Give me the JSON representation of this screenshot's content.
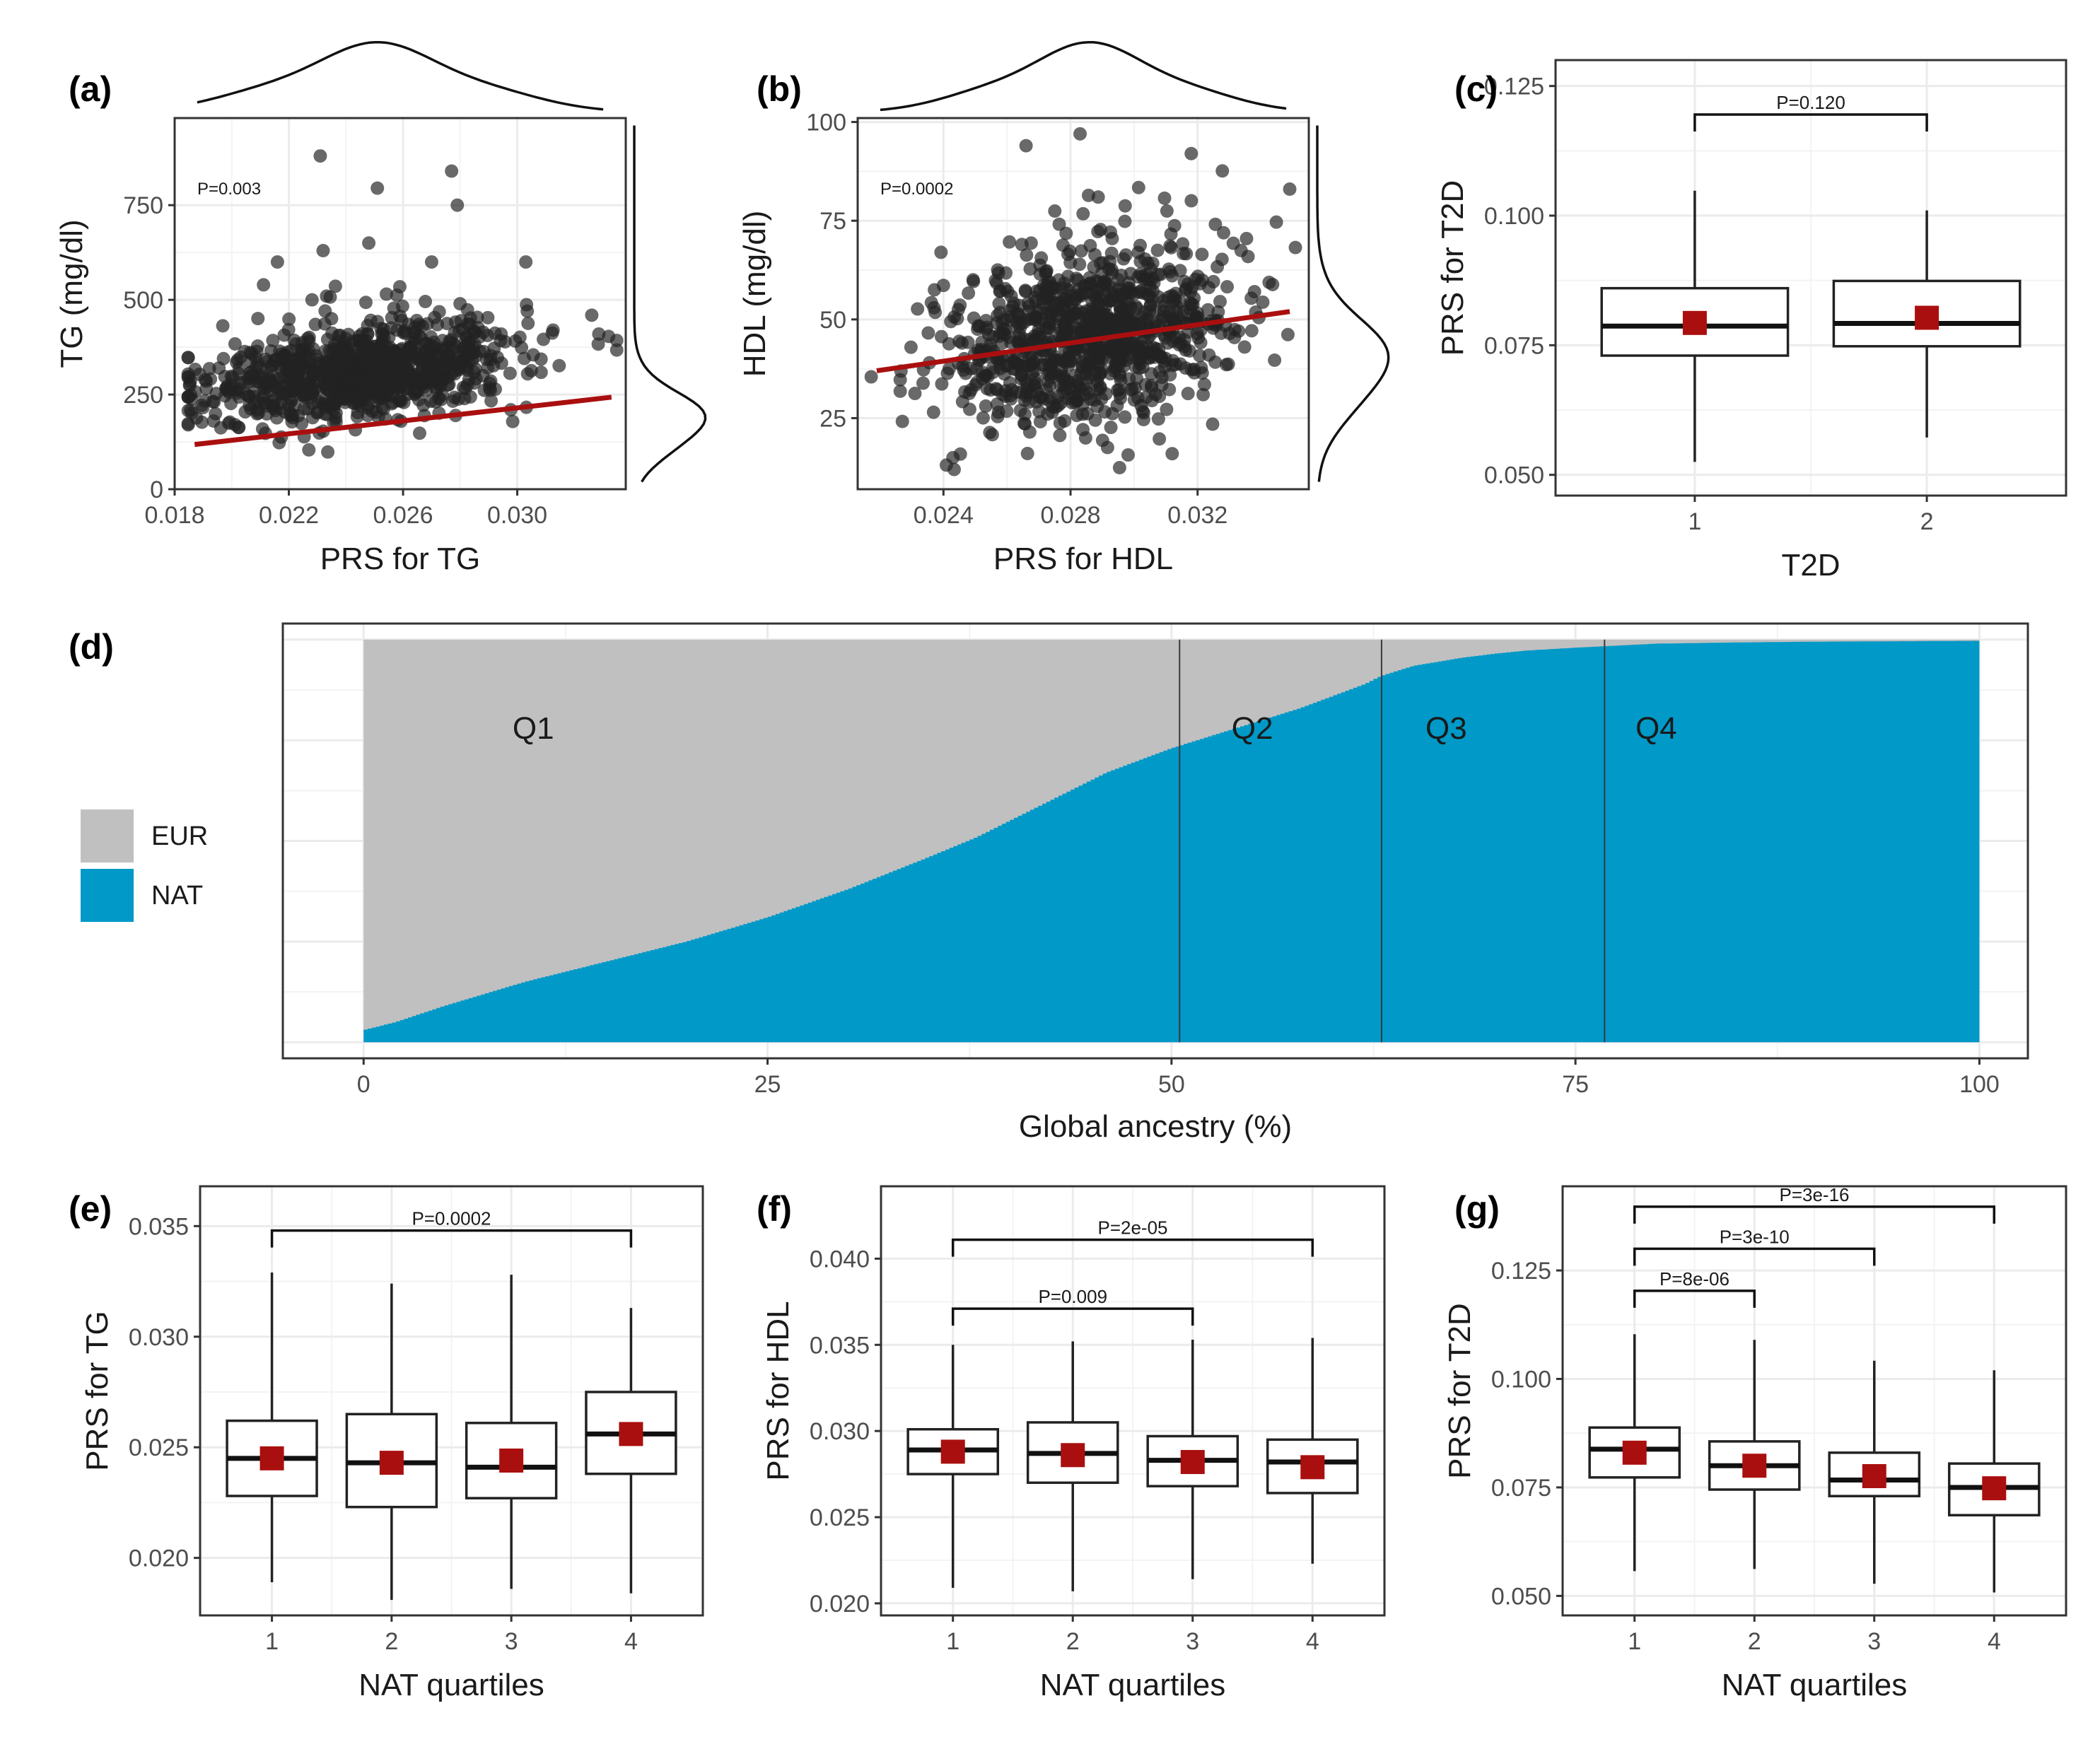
{
  "chart_data": [
    {
      "panel": "a",
      "panel_label": "(a)",
      "type": "scatter",
      "xlabel": "PRS for TG",
      "ylabel": "TG (mg/dl)",
      "xlim": [
        0.018,
        0.0338
      ],
      "ylim": [
        0,
        980
      ],
      "xticks": [
        0.018,
        0.022,
        0.026,
        0.03
      ],
      "xtick_labels": [
        "0.018",
        "0.022",
        "0.026",
        "0.030"
      ],
      "yticks": [
        0,
        250,
        500,
        750
      ],
      "ytick_labels": [
        "0",
        "250",
        "500",
        "750"
      ],
      "annotation": "P=0.003",
      "regression": {
        "x": [
          0.0187,
          0.0333
        ],
        "y": [
          118,
          243
        ],
        "color": "#aa0f0f"
      },
      "cloud": {
        "n": 950,
        "x_mean": 0.0245,
        "x_sd": 0.0027,
        "y_base": 80,
        "y_slope": 9000,
        "y_sd": 60,
        "y_floor": 25,
        "seed": 11
      },
      "outliers": [
        [
          0.0231,
          880
        ],
        [
          0.0251,
          795
        ],
        [
          0.0277,
          840
        ],
        [
          0.0279,
          750
        ],
        [
          0.0303,
          600
        ],
        [
          0.0232,
          630
        ],
        [
          0.0216,
          600
        ],
        [
          0.027,
          600
        ],
        [
          0.0248,
          650
        ]
      ],
      "marginal_x": {
        "mean": 0.0251,
        "sd": 0.0032
      },
      "marginal_y": {
        "mean": 180,
        "sd": 75
      }
    },
    {
      "panel": "b",
      "panel_label": "(b)",
      "type": "scatter",
      "xlabel": "PRS for HDL",
      "ylabel": "HDL (mg/dl)",
      "xlim": [
        0.0213,
        0.0355
      ],
      "ylim": [
        7,
        101
      ],
      "xticks": [
        0.024,
        0.028,
        0.032
      ],
      "xtick_labels": [
        "0.024",
        "0.028",
        "0.032"
      ],
      "yticks": [
        25,
        50,
        75,
        100
      ],
      "ytick_labels": [
        "25",
        "50",
        "75",
        "100"
      ],
      "annotation": "P=0.0002",
      "regression": {
        "x": [
          0.0219,
          0.0349
        ],
        "y": [
          37,
          52
        ],
        "color": "#aa0f0f"
      },
      "cloud": {
        "n": 950,
        "x_mean": 0.0285,
        "x_sd": 0.0023,
        "y_base": 11.8,
        "y_slope": 1150,
        "y_sd": 10.5,
        "y_floor": 12,
        "seed": 23
      },
      "outliers": [
        [
          0.0283,
          97
        ],
        [
          0.0318,
          92
        ],
        [
          0.0266,
          94
        ],
        [
          0.0349,
          83
        ],
        [
          0.0243,
          15
        ],
        [
          0.0312,
          16
        ]
      ],
      "marginal_x": {
        "mean": 0.0286,
        "sd": 0.0026
      },
      "marginal_y": {
        "mean": 39,
        "sd": 11
      }
    },
    {
      "panel": "c",
      "panel_label": "(c)",
      "type": "box",
      "xlabel": "T2D",
      "ylabel": "PRS for T2D",
      "categories": [
        "1",
        "2"
      ],
      "ylim": [
        0.046,
        0.13
      ],
      "yticks": [
        0.05,
        0.075,
        0.1,
        0.125
      ],
      "ytick_labels": [
        "0.050",
        "0.075",
        "0.100",
        "0.125"
      ],
      "boxes": [
        {
          "min": 0.0525,
          "q1": 0.073,
          "median": 0.0787,
          "q3": 0.086,
          "max": 0.1048,
          "mean": 0.0793
        },
        {
          "min": 0.0572,
          "q1": 0.0748,
          "median": 0.0792,
          "q3": 0.0874,
          "max": 0.101,
          "mean": 0.0803
        }
      ],
      "brackets": [
        {
          "from": 1,
          "to": 2,
          "y": 0.1195,
          "label": "P=0.120"
        }
      ]
    },
    {
      "panel": "d",
      "panel_label": "(d)",
      "type": "area",
      "xlabel": "Global ancestry (%)",
      "xlim": [
        -5,
        103
      ],
      "xticks": [
        0,
        25,
        50,
        75,
        100
      ],
      "xtick_labels": [
        "0",
        "25",
        "50",
        "75",
        "100"
      ],
      "legend": [
        {
          "label": "EUR",
          "color": "#c0c0c0"
        },
        {
          "label": "NAT",
          "color": "#0099c8"
        }
      ],
      "nat_curve": {
        "x": [
          0,
          2,
          5,
          10,
          15,
          20,
          25,
          30,
          35,
          38,
          40,
          42,
          44,
          46,
          48,
          50,
          52,
          54,
          56,
          58,
          60,
          62,
          63,
          65,
          68,
          70,
          72,
          75,
          78,
          80,
          85,
          90,
          95,
          100
        ],
        "y": [
          3,
          5,
          9,
          15,
          20,
          25,
          31,
          38,
          46,
          51,
          55,
          59,
          63,
          67,
          70,
          73,
          75.5,
          78,
          80.5,
          83,
          86,
          89,
          91,
          93.5,
          95.5,
          96.5,
          97.3,
          98,
          98.6,
          99,
          99.3,
          99.5,
          99.6,
          99.7
        ]
      },
      "quartile_cutoffs": [
        50.5,
        63,
        76.8
      ],
      "quartile_labels": [
        {
          "label": "Q1",
          "x": 10.5
        },
        {
          "label": "Q2",
          "x": 55
        },
        {
          "label": "Q3",
          "x": 67
        },
        {
          "label": "Q4",
          "x": 80
        }
      ]
    },
    {
      "panel": "e",
      "panel_label": "(e)",
      "type": "box",
      "xlabel": "NAT quartiles",
      "ylabel": "PRS for TG",
      "categories": [
        "1",
        "2",
        "3",
        "4"
      ],
      "ylim": [
        0.0174,
        0.0368
      ],
      "yticks": [
        0.02,
        0.025,
        0.03,
        0.035
      ],
      "ytick_labels": [
        "0.020",
        "0.025",
        "0.030",
        "0.035"
      ],
      "boxes": [
        {
          "min": 0.0189,
          "q1": 0.0228,
          "median": 0.0245,
          "q3": 0.0262,
          "max": 0.0329,
          "mean": 0.0245
        },
        {
          "min": 0.0181,
          "q1": 0.0223,
          "median": 0.0243,
          "q3": 0.0265,
          "max": 0.0324,
          "mean": 0.0243
        },
        {
          "min": 0.0186,
          "q1": 0.0227,
          "median": 0.0241,
          "q3": 0.0261,
          "max": 0.0328,
          "mean": 0.0244
        },
        {
          "min": 0.0184,
          "q1": 0.0238,
          "median": 0.0256,
          "q3": 0.0275,
          "max": 0.0313,
          "mean": 0.0256
        }
      ],
      "brackets": [
        {
          "from": 1,
          "to": 4,
          "y": 0.0348,
          "label": "P=0.0002"
        }
      ]
    },
    {
      "panel": "f",
      "panel_label": "(f)",
      "type": "box",
      "xlabel": "NAT quartiles",
      "ylabel": "PRS for HDL",
      "categories": [
        "1",
        "2",
        "3",
        "4"
      ],
      "ylim": [
        0.0193,
        0.0442
      ],
      "yticks": [
        0.02,
        0.025,
        0.03,
        0.035,
        0.04
      ],
      "ytick_labels": [
        "0.020",
        "0.025",
        "0.030",
        "0.035",
        "0.040"
      ],
      "boxes": [
        {
          "min": 0.0209,
          "q1": 0.0275,
          "median": 0.0289,
          "q3": 0.0301,
          "max": 0.035,
          "mean": 0.0288
        },
        {
          "min": 0.0207,
          "q1": 0.027,
          "median": 0.0287,
          "q3": 0.0305,
          "max": 0.0352,
          "mean": 0.0286
        },
        {
          "min": 0.0214,
          "q1": 0.0268,
          "median": 0.0283,
          "q3": 0.0297,
          "max": 0.0353,
          "mean": 0.0282
        },
        {
          "min": 0.0223,
          "q1": 0.0264,
          "median": 0.0282,
          "q3": 0.0295,
          "max": 0.0354,
          "mean": 0.0279
        }
      ],
      "brackets": [
        {
          "from": 1,
          "to": 4,
          "y": 0.0411,
          "label": "P=2e-05"
        },
        {
          "from": 1,
          "to": 3,
          "y": 0.0371,
          "label": "P=0.009"
        }
      ]
    },
    {
      "panel": "g",
      "panel_label": "(g)",
      "type": "box",
      "xlabel": "NAT quartiles",
      "ylabel": "PRS for T2D",
      "categories": [
        "1",
        "2",
        "3",
        "4"
      ],
      "ylim": [
        0.0455,
        0.1444
      ],
      "yticks": [
        0.05,
        0.075,
        0.1,
        0.125
      ],
      "ytick_labels": [
        "0.050",
        "0.075",
        "0.100",
        "0.125"
      ],
      "boxes": [
        {
          "min": 0.0557,
          "q1": 0.0773,
          "median": 0.0838,
          "q3": 0.0888,
          "max": 0.1103,
          "mean": 0.083
        },
        {
          "min": 0.0562,
          "q1": 0.0745,
          "median": 0.08,
          "q3": 0.0856,
          "max": 0.109,
          "mean": 0.08
        },
        {
          "min": 0.0528,
          "q1": 0.073,
          "median": 0.0767,
          "q3": 0.083,
          "max": 0.1042,
          "mean": 0.0776
        },
        {
          "min": 0.0508,
          "q1": 0.0686,
          "median": 0.075,
          "q3": 0.0805,
          "max": 0.102,
          "mean": 0.0748
        }
      ],
      "brackets": [
        {
          "from": 1,
          "to": 4,
          "y": 0.1397,
          "label": "P=3e-16"
        },
        {
          "from": 1,
          "to": 3,
          "y": 0.13,
          "label": "P=3e-10"
        },
        {
          "from": 1,
          "to": 2,
          "y": 0.1203,
          "label": "P=8e-06"
        }
      ]
    }
  ],
  "colors": {
    "point": "#222222",
    "mean_marker": "#aa0f0f",
    "grid": "#ebebeb",
    "axis_text": "#4d4d4d",
    "frame": "#333333",
    "eur": "#c0c0c0",
    "nat": "#0099c8"
  }
}
